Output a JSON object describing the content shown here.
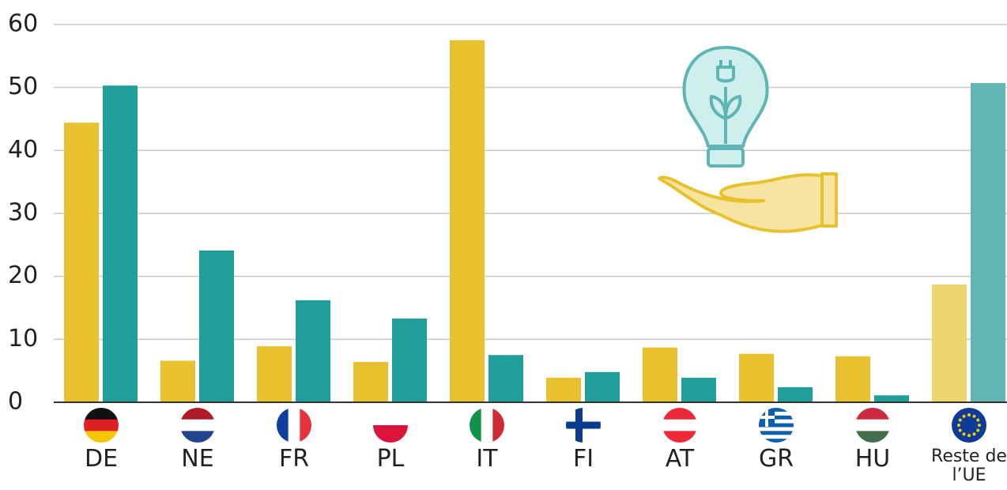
{
  "chart_data": {
    "type": "bar",
    "categories": [
      "DE",
      "NE",
      "FR",
      "PL",
      "IT",
      "FI",
      "AT",
      "GR",
      "HU",
      "Reste de l’UE"
    ],
    "series": [
      {
        "colors": [
          "#e8c12e",
          "#e8c12e",
          "#e8c12e",
          "#e8c12e",
          "#e8c12e",
          "#e8c12e",
          "#e8c12e",
          "#e8c12e",
          "#e8c12e",
          "#edd46c"
        ],
        "values": [
          44.4,
          6.6,
          8.9,
          6.4,
          57.5,
          3.9,
          8.7,
          7.7,
          7.3,
          18.7
        ]
      },
      {
        "colors": [
          "#229e9a",
          "#229e9a",
          "#229e9a",
          "#229e9a",
          "#229e9a",
          "#229e9a",
          "#229e9a",
          "#229e9a",
          "#229e9a",
          "#61b6b3"
        ],
        "values": [
          50.3,
          24.1,
          16.2,
          13.3,
          7.5,
          4.8,
          3.9,
          2.4,
          1.1,
          50.7
        ]
      }
    ],
    "ylim": [
      0,
      60
    ],
    "yticks": [
      0,
      10,
      20,
      30,
      40,
      50,
      60
    ],
    "grid": true
  }
}
